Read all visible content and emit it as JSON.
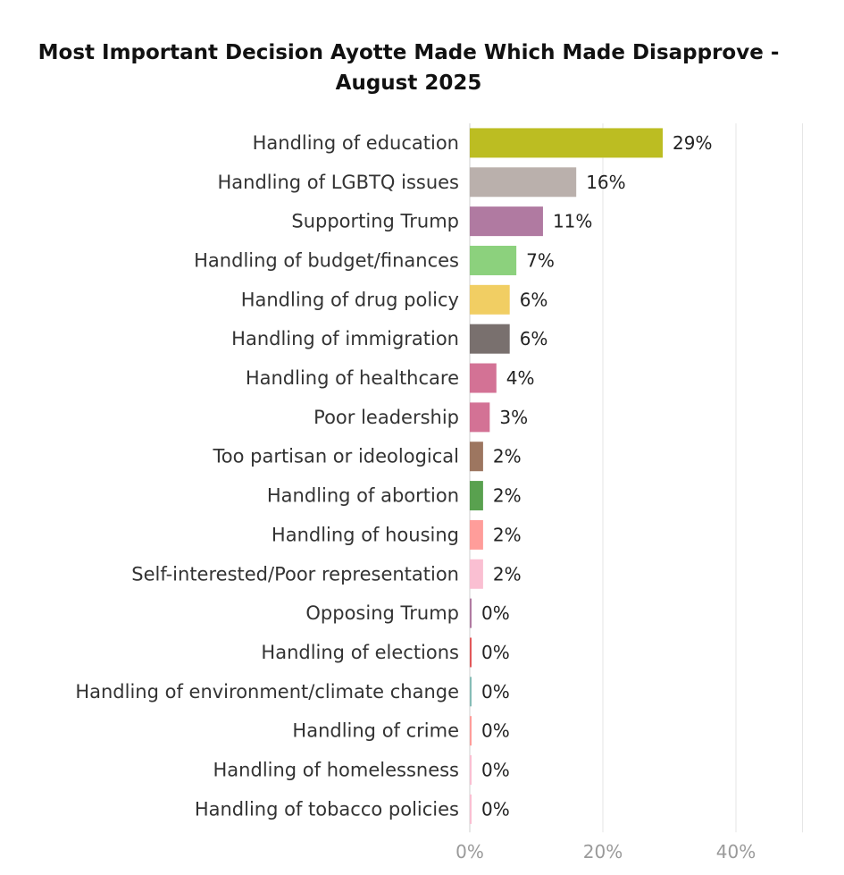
{
  "chart_data": {
    "type": "bar",
    "orientation": "horizontal",
    "title_lines": [
      "Most Important Decision Ayotte Made Which Made Disapprove -",
      "August 2025"
    ],
    "categories": [
      "Handling of education",
      "Handling of LGBTQ issues",
      "Supporting Trump",
      "Handling of budget/finances",
      "Handling of drug policy",
      "Handling of immigration",
      "Handling of healthcare",
      "Poor leadership",
      "Too partisan or ideological",
      "Handling of abortion",
      "Handling of housing",
      "Self-interested/Poor representation",
      "Opposing Trump",
      "Handling of elections",
      "Handling of environment/climate change",
      "Handling of crime",
      "Handling of homelessness",
      "Handling of tobacco policies"
    ],
    "values": [
      29,
      16,
      11,
      7,
      6,
      6,
      4,
      3,
      2,
      2,
      2,
      2,
      0,
      0,
      0,
      0,
      0,
      0
    ],
    "value_labels": [
      "29%",
      "16%",
      "11%",
      "7%",
      "6%",
      "6%",
      "4%",
      "3%",
      "2%",
      "2%",
      "2%",
      "2%",
      "0%",
      "0%",
      "0%",
      "0%",
      "0%",
      "0%"
    ],
    "colors": [
      "#bcbd22",
      "#bab0ac",
      "#b07aa1",
      "#8cd17d",
      "#f1ce63",
      "#79706e",
      "#d37295",
      "#d37295",
      "#9d7660",
      "#59a14f",
      "#ff9d9a",
      "#fabfd2",
      "#b07aa1",
      "#e15759",
      "#86bcb6",
      "#ff9d9a",
      "#fabfd2",
      "#fabfd2"
    ],
    "x_axis": {
      "ticks": [
        0,
        20,
        40
      ],
      "tick_labels": [
        "0%",
        "20%",
        "40%"
      ],
      "range": [
        0,
        50
      ],
      "gridlines": true
    },
    "xlabel": "",
    "ylabel": ""
  }
}
